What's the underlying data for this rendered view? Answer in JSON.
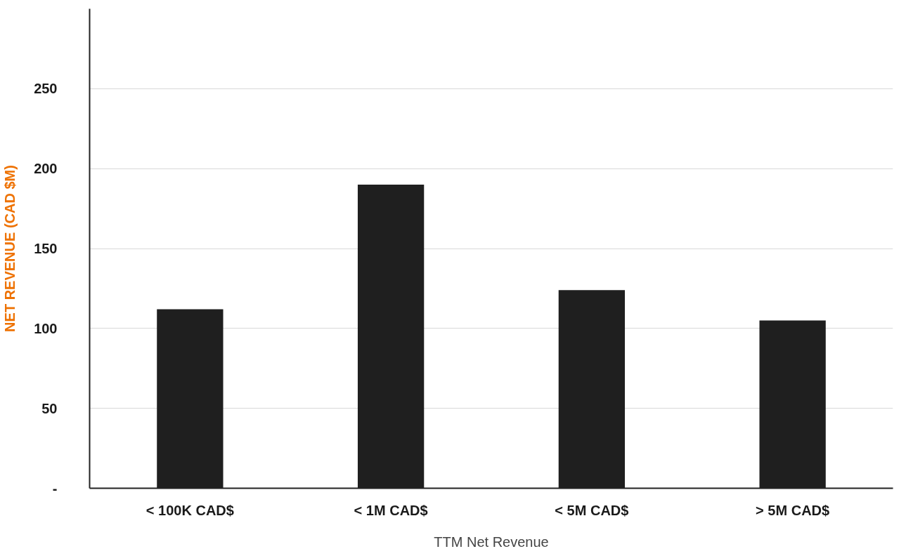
{
  "chart_data": {
    "type": "bar",
    "xlabel": "TTM Net Revenue",
    "ylabel": "NET REVENUE (CAD $M)",
    "categories": [
      "< 100K CAD$",
      "< 1M CAD$",
      "< 5M CAD$",
      "> 5M CAD$"
    ],
    "values": [
      112,
      190,
      124,
      105
    ],
    "color": "#1f1f1f",
    "ylim": [
      0,
      300
    ],
    "yticks": [
      {
        "value": 0,
        "label": "-"
      },
      50,
      100,
      150,
      200,
      250
    ],
    "grid": "y"
  }
}
